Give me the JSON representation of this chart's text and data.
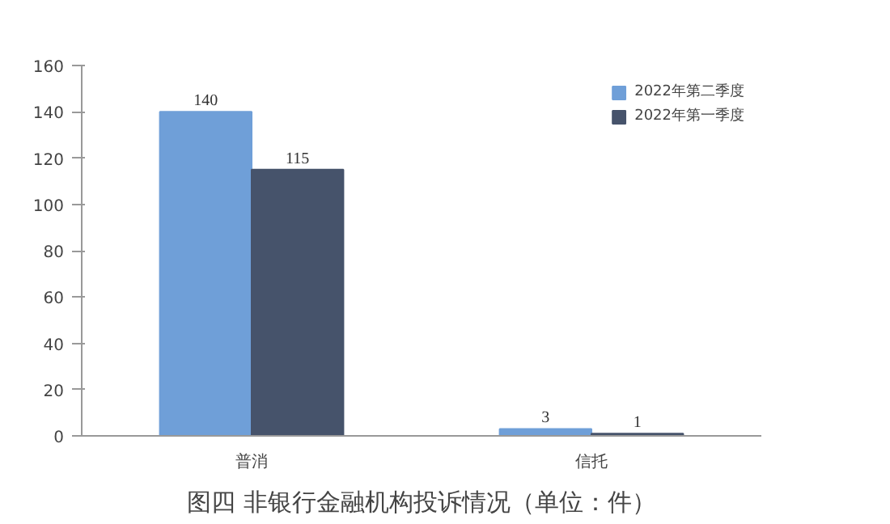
{
  "chart_data": {
    "type": "bar",
    "title": "图四 非银行金融机构投诉情况（单位：件）",
    "categories": [
      "普消",
      "信托"
    ],
    "series": [
      {
        "name": "2022年第二季度",
        "color": "#6f9fd8",
        "values": [
          140,
          3
        ]
      },
      {
        "name": "2022年第一季度",
        "color": "#46536b",
        "values": [
          115,
          1
        ]
      }
    ],
    "ylim": [
      0,
      160
    ],
    "yticks": [
      0,
      20,
      40,
      60,
      80,
      100,
      120,
      140,
      160
    ],
    "grid": false,
    "legend": "top right",
    "data_labels": true
  }
}
